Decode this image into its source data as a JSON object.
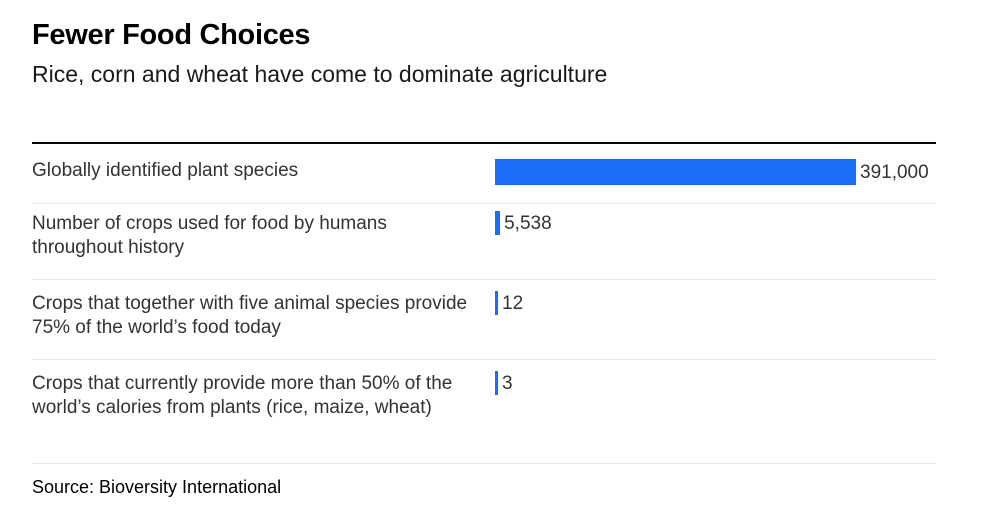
{
  "chart_data": {
    "type": "bar",
    "orientation": "horizontal",
    "title": "Fewer Food Choices",
    "subtitle": "Rice, corn and wheat have come to dominate agriculture",
    "categories": [
      "Globally identified plant species",
      "Number of crops used for food by humans throughout history",
      "Crops that together with five animal species provide 75% of the world’s food today",
      "Crops that currently provide more than 50% of the world’s calories from plants (rice, maize, wheat)"
    ],
    "values": [
      391000,
      5538,
      12,
      3
    ],
    "value_labels": [
      "391,000",
      "5,538",
      "12",
      "3"
    ],
    "xlim": [
      0,
      391000
    ],
    "bar_color": "#1a6ef5",
    "grid": false,
    "source": "Source: Bioversity International"
  }
}
